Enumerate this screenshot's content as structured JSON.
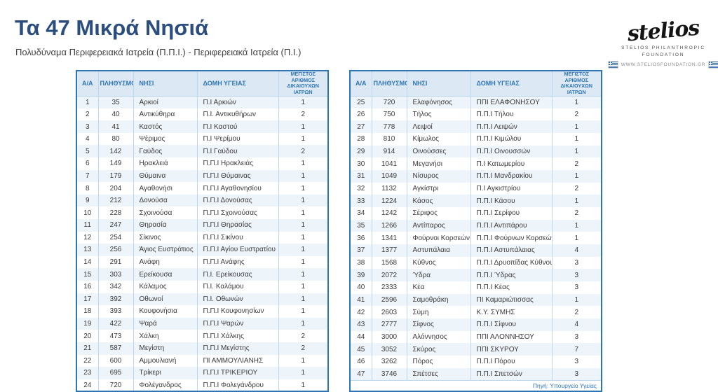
{
  "page": {
    "title": "Τα 47 Μικρά Νησιά",
    "subtitle": "Πολυδύναμα Περιφερειακά Ιατρεία (Π.Π.Ι.) - Περιφερειακά Ιατρεία (Π.Ι.)"
  },
  "logo": {
    "wordmark": "stelios",
    "line1": "STELIOS PHILANTHROPIC",
    "line2": "FOUNDATION",
    "website": "WWW.STELIOSFOUNDATION.GR"
  },
  "table": {
    "headers": [
      "Α/Α",
      "ΠΛΗΘΥΣΜΟΣ",
      "ΝΗΣΙ",
      "ΔΟΜΗ ΥΓΕΙΑΣ",
      "ΜΕΓΙΣΤΟΣ ΑΡΙΘΜΟΣ ΔΙΚΑΙΟΥΧΩΝ ΙΑΤΡΩΝ"
    ],
    "left_rows": [
      [
        "1",
        "35",
        "Αρκιοί",
        "Π.Ι Αρκιών",
        "1"
      ],
      [
        "2",
        "40",
        "Αντικύθηρα",
        "Π.Ι. Αντικυθήρων",
        "2"
      ],
      [
        "3",
        "41",
        "Καστός",
        "Π.Ι Καστού",
        "1"
      ],
      [
        "4",
        "80",
        "Ψέριμος",
        "Π.Ι Ψερίμου",
        "1"
      ],
      [
        "5",
        "142",
        "Γαύδος",
        "Π.Ι Γαύδου",
        "2"
      ],
      [
        "6",
        "149",
        "Ηρακλειά",
        "Π.Π.Ι Ηρακλειάς",
        "1"
      ],
      [
        "7",
        "179",
        "Θύμαινα",
        "Π.Π.Ι Θύμαινας",
        "1"
      ],
      [
        "8",
        "204",
        "Αγαθονήσι",
        "Π.Π.Ι Αγαθονησίου",
        "1"
      ],
      [
        "9",
        "212",
        "Δονούσα",
        "Π.Π.Ι Δονούσας",
        "1"
      ],
      [
        "10",
        "228",
        "Σχοινούσα",
        "Π.Π.Ι Σχοινούσας",
        "1"
      ],
      [
        "11",
        "247",
        "Θηρασία",
        "Π.Π.Ι Θηρασίας",
        "1"
      ],
      [
        "12",
        "254",
        "Σίκινος",
        "Π.Π.Ι Σικίνου",
        "1"
      ],
      [
        "13",
        "256",
        "Άγιος Ευστράτιος",
        "Π.Π.Ι Αγίου Ευστρατίου",
        "1"
      ],
      [
        "14",
        "291",
        "Ανάφη",
        "Π.Π.Ι Ανάφης",
        "1"
      ],
      [
        "15",
        "303",
        "Ερείκουσα",
        "Π.Ι. Ερείκουσας",
        "1"
      ],
      [
        "16",
        "342",
        "Κάλαμος",
        "Π.Ι. Καλάμου",
        "1"
      ],
      [
        "17",
        "392",
        "Οθωνοί",
        "Π.Ι. Οθωνών",
        "1"
      ],
      [
        "18",
        "393",
        "Κουφονήσια",
        "Π.Π.Ι Κουφονησίων",
        "1"
      ],
      [
        "19",
        "422",
        "Ψαρά",
        "Π.Π.Ι Ψαρών",
        "1"
      ],
      [
        "20",
        "473",
        "Χάλκη",
        "Π.Π.Ι Χάλκης",
        "2"
      ],
      [
        "21",
        "587",
        "Μεγίστη",
        "Π.Π.Ι Μεγίστης",
        "2"
      ],
      [
        "22",
        "600",
        "Αμμουλιανή",
        "ΠΙ ΑΜΜΟΥΛΙΑΝΗΣ",
        "1"
      ],
      [
        "23",
        "695",
        "Τρίκερι",
        "Π.Π.Ι ΤΡΙΚΕΡΙΟΥ",
        "1"
      ],
      [
        "24",
        "720",
        "Φολέγανδρος",
        "Π.Π.Ι Φολεγάνδρου",
        "1"
      ]
    ],
    "right_rows": [
      [
        "25",
        "720",
        "Ελαφόνησος",
        "ΠΠΙ ΕΛΑΦΟΝΗΣΟΥ",
        "1"
      ],
      [
        "26",
        "750",
        "Τήλος",
        "Π.Π.Ι Τήλου",
        "2"
      ],
      [
        "27",
        "778",
        "Λειψοί",
        "Π.Π.Ι Λειψών",
        "1"
      ],
      [
        "28",
        "810",
        "Κίμωλος",
        "Π.Π.Ι Κιμώλου",
        "1"
      ],
      [
        "29",
        "914",
        "Οινούσσες",
        "Π.Π.Ι Οινουσσών",
        "1"
      ],
      [
        "30",
        "1041",
        "Μεγανήσι",
        "Π.Ι Κατωμερίου",
        "2"
      ],
      [
        "31",
        "1049",
        "Νίσυρος",
        "Π.Π.Ι Μανδρακίου",
        "1"
      ],
      [
        "32",
        "1132",
        "Αγκίστρι",
        "Π.Ι Αγκιστρίου",
        "2"
      ],
      [
        "33",
        "1224",
        "Κάσος",
        "Π.Π.Ι Κάσου",
        "1"
      ],
      [
        "34",
        "1242",
        "Σέριφος",
        "Π.Π.Ι Σερίφου",
        "2"
      ],
      [
        "35",
        "1266",
        "Αντίπαρος",
        "Π.Π.Ι Αντιπάρου",
        "1"
      ],
      [
        "36",
        "1341",
        "Φούρνοι Κορσεών",
        "Π.Π.Ι Φούρνων Κορσεών",
        "1"
      ],
      [
        "37",
        "1377",
        "Αστυπάλαια",
        "Π.Π.Ι Αστυπάλαιας",
        "4"
      ],
      [
        "38",
        "1568",
        "Κύθνος",
        "Π.Π.Ι Δρυοπίδας Κύθνου",
        "3"
      ],
      [
        "39",
        "2072",
        "Ύδρα",
        "Π.Π.Ι Ύδρας",
        "3"
      ],
      [
        "40",
        "2333",
        "Κέα",
        "Π.Π.Ι Κέας",
        "3"
      ],
      [
        "41",
        "2596",
        "Σαμοθράκη",
        "ΠΙ Καμαριώτισσας",
        "1"
      ],
      [
        "42",
        "2603",
        "Σύμη",
        "Κ.Υ. ΣΥΜΗΣ",
        "2"
      ],
      [
        "43",
        "2777",
        "Σίφνος",
        "Π.Π.Ι Σίφνου",
        "4"
      ],
      [
        "44",
        "3000",
        "Αλόννησος",
        "ΠΠΙ ΑΛΟΝΝΗΣΟΥ",
        "3"
      ],
      [
        "45",
        "3052",
        "Σκύρος",
        "ΠΠΙ ΣΚΥΡΟΥ",
        "7"
      ],
      [
        "46",
        "3262",
        "Πόρος",
        "Π.Π.Ι Πόρου",
        "3"
      ],
      [
        "47",
        "3746",
        "Σπέτσες",
        "Π.Π.Ι Σπετσών",
        "3"
      ]
    ],
    "source": "Πηγή: Υπουργείο Υγείας"
  },
  "colors": {
    "title": "#2b4e7e",
    "table_border": "#2e75b6",
    "header_bg": "#dce9f5",
    "header_text": "#2e75b6",
    "separator": "#bdd7ee",
    "odd_row_bg": "#edf4fa",
    "body_text": "#3a3a3a",
    "source_text": "#2e75b6",
    "flag_blue": "#3a6fb0"
  }
}
